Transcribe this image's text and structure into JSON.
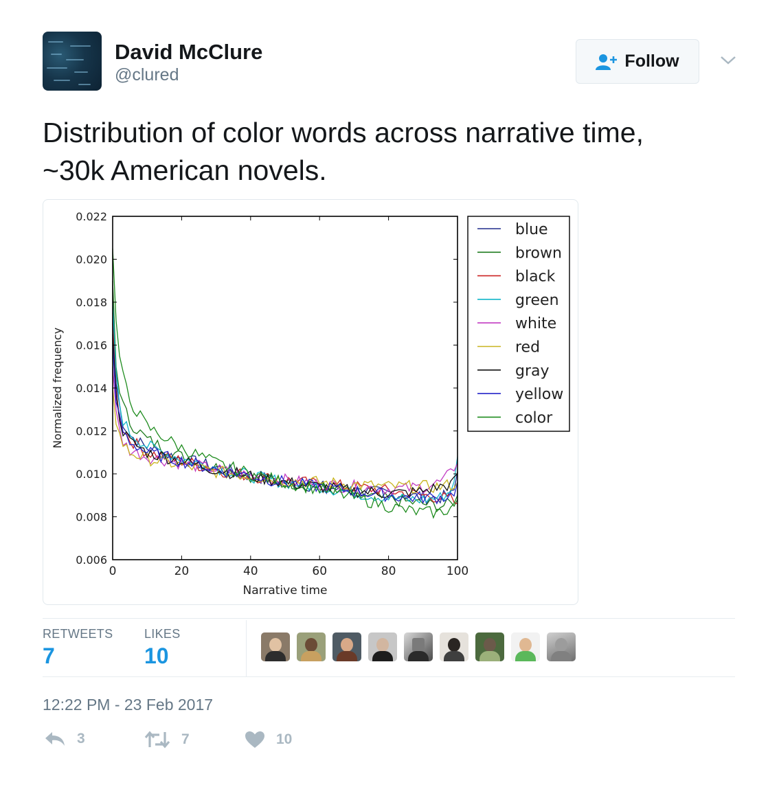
{
  "user": {
    "name": "David McClure",
    "handle": "@clured"
  },
  "follow_button": {
    "label": "Follow"
  },
  "tweet": {
    "line1": "Distribution of color words across narrative time,",
    "line2": "~30k American novels."
  },
  "stats": {
    "retweets_label": "RETWEETS",
    "retweets_value": "7",
    "likes_label": "LIKES",
    "likes_value": "10",
    "likers_count": 9
  },
  "timestamp": "12:22 PM - 23 Feb 2017",
  "actions": {
    "reply": "3",
    "retweet": "7",
    "like": "10"
  },
  "icons": [
    "avatar",
    "follow-person-icon",
    "chevron-down-icon",
    "reply-icon",
    "retweet-icon",
    "heart-icon"
  ],
  "colors": {
    "link_blue": "#1b95e0",
    "muted": "#657786",
    "icon_gray": "#aab8c2"
  },
  "chart_data": {
    "type": "line",
    "xlabel": "Narrative time",
    "ylabel": "Normalized frequency",
    "xlim": [
      0,
      100
    ],
    "ylim": [
      0.006,
      0.022
    ],
    "xticks": [
      0,
      20,
      40,
      60,
      80,
      100
    ],
    "yticks": [
      0.006,
      0.008,
      0.01,
      0.012,
      0.014,
      0.016,
      0.018,
      0.02,
      0.022
    ],
    "ytick_labels": [
      "0.006",
      "0.008",
      "0.010",
      "0.012",
      "0.014",
      "0.016",
      "0.018",
      "0.020",
      "0.022"
    ],
    "xtick_labels": [
      "0",
      "20",
      "40",
      "60",
      "80",
      "100"
    ],
    "legend_position": "outside-right-top",
    "x": [
      0,
      1,
      2,
      3,
      5,
      10,
      20,
      30,
      40,
      50,
      60,
      70,
      80,
      85,
      90,
      95,
      98,
      99,
      100
    ],
    "series": [
      {
        "name": "blue",
        "color": "#1f2a8c",
        "values": [
          0.0175,
          0.0142,
          0.0132,
          0.0124,
          0.0118,
          0.0112,
          0.0107,
          0.0103,
          0.0099,
          0.0096,
          0.0094,
          0.0092,
          0.0091,
          0.009,
          0.0089,
          0.0089,
          0.009,
          0.0092,
          0.0101
        ]
      },
      {
        "name": "brown",
        "color": "#1c7a1c",
        "values": [
          0.019,
          0.015,
          0.014,
          0.0132,
          0.0124,
          0.0116,
          0.0108,
          0.0103,
          0.0099,
          0.0096,
          0.0094,
          0.0091,
          0.0088,
          0.0087,
          0.0086,
          0.0085,
          0.0086,
          0.0087,
          0.0088
        ]
      },
      {
        "name": "black",
        "color": "#cc2222",
        "values": [
          0.017,
          0.0138,
          0.0128,
          0.0121,
          0.0116,
          0.011,
          0.0106,
          0.0102,
          0.0099,
          0.0097,
          0.0095,
          0.0094,
          0.0092,
          0.0091,
          0.009,
          0.0089,
          0.0088,
          0.0087,
          0.0086
        ]
      },
      {
        "name": "green",
        "color": "#11b5c9",
        "values": [
          0.018,
          0.0145,
          0.0133,
          0.0125,
          0.0119,
          0.0113,
          0.0107,
          0.0103,
          0.0099,
          0.0096,
          0.0094,
          0.0091,
          0.0089,
          0.0088,
          0.0088,
          0.0089,
          0.0092,
          0.0098,
          0.0108
        ]
      },
      {
        "name": "white",
        "color": "#c23ac2",
        "values": [
          0.015,
          0.0128,
          0.012,
          0.0115,
          0.0111,
          0.0108,
          0.0105,
          0.0102,
          0.0099,
          0.0097,
          0.0095,
          0.0094,
          0.0093,
          0.0093,
          0.0094,
          0.0096,
          0.01,
          0.0103,
          0.0105
        ]
      },
      {
        "name": "red",
        "color": "#c8b41e",
        "values": [
          0.014,
          0.0125,
          0.0118,
          0.0114,
          0.011,
          0.0107,
          0.0104,
          0.0101,
          0.0099,
          0.0097,
          0.0096,
          0.0095,
          0.0094,
          0.0094,
          0.0094,
          0.0094,
          0.0095,
          0.0095,
          0.0096
        ]
      },
      {
        "name": "gray",
        "color": "#111111",
        "values": [
          0.0165,
          0.0136,
          0.0127,
          0.012,
          0.0115,
          0.011,
          0.0106,
          0.0102,
          0.0099,
          0.0096,
          0.0094,
          0.0092,
          0.0091,
          0.0091,
          0.0092,
          0.0094,
          0.0095,
          0.0096,
          0.01
        ]
      },
      {
        "name": "yellow",
        "color": "#2424c8",
        "values": [
          0.016,
          0.0134,
          0.0126,
          0.012,
          0.0115,
          0.011,
          0.0106,
          0.0102,
          0.0099,
          0.0096,
          0.0094,
          0.0092,
          0.009,
          0.0089,
          0.0089,
          0.0089,
          0.009,
          0.0092,
          0.0096
        ]
      },
      {
        "name": "color",
        "color": "#1d8b1d",
        "values": [
          0.0205,
          0.017,
          0.0155,
          0.0145,
          0.0134,
          0.0122,
          0.0112,
          0.0105,
          0.01,
          0.0096,
          0.0093,
          0.0089,
          0.0085,
          0.0083,
          0.0082,
          0.0082,
          0.0084,
          0.0086,
          0.009
        ]
      }
    ]
  }
}
